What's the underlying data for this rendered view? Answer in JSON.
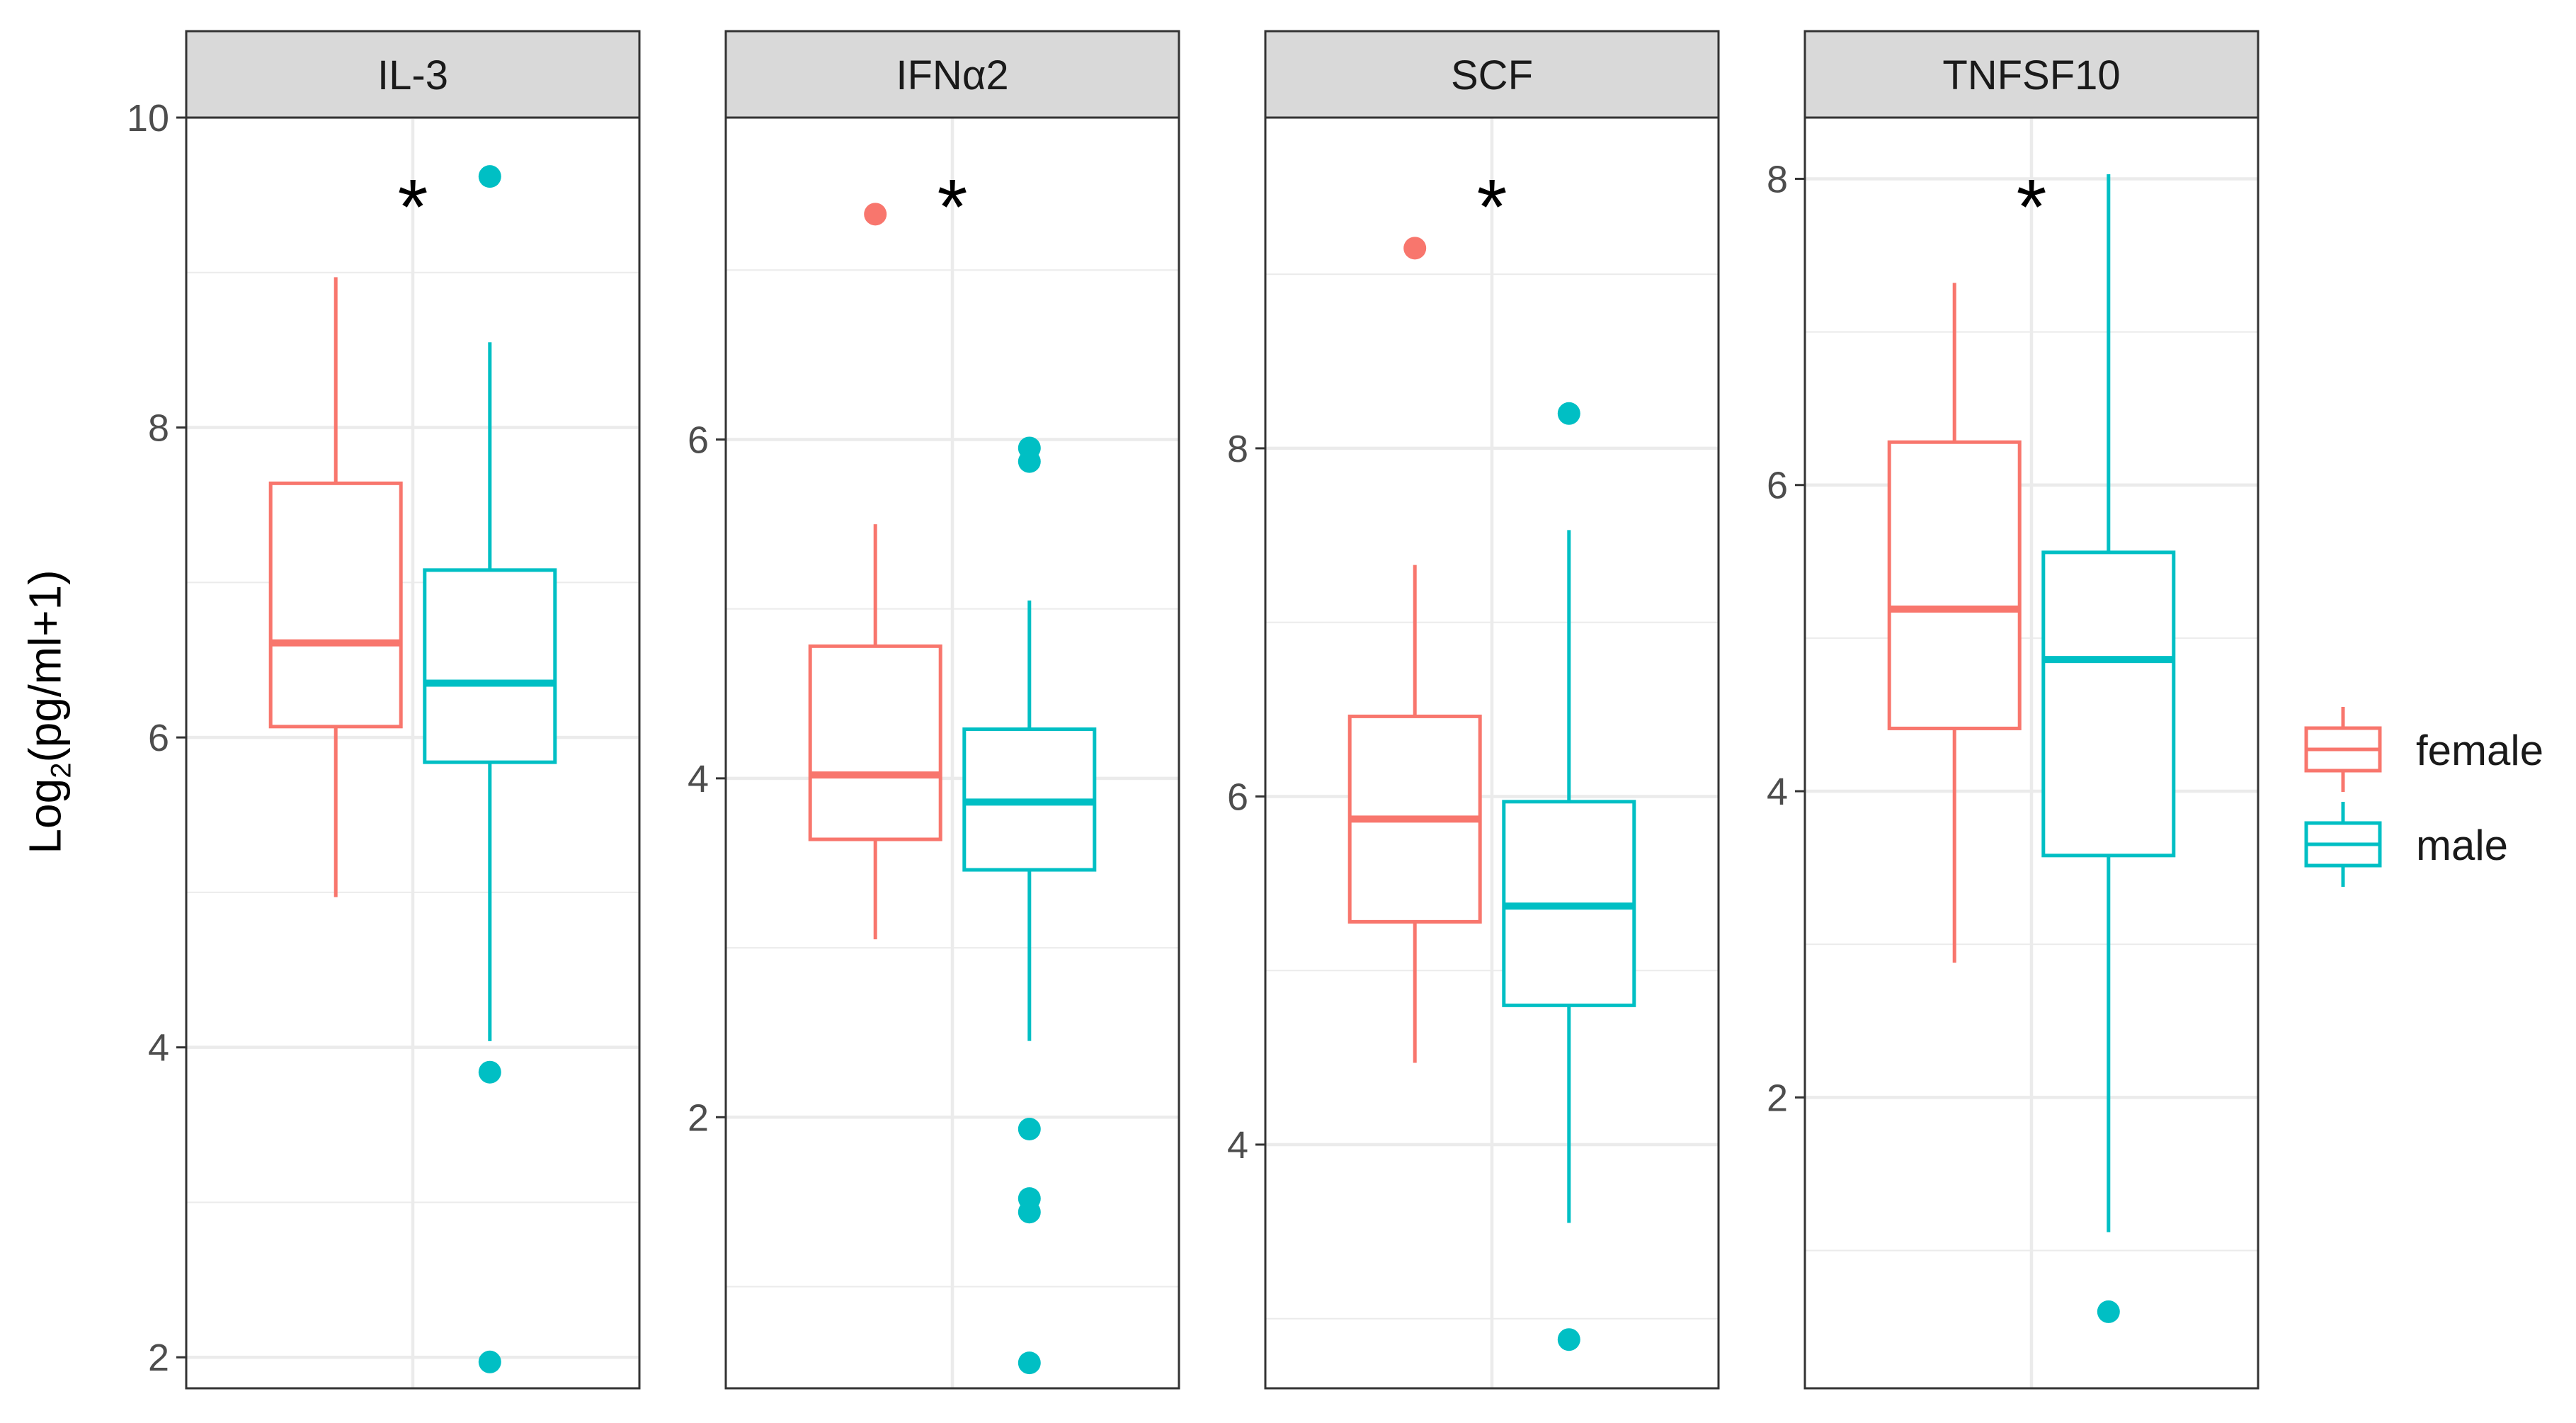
{
  "chart_data": {
    "type": "boxplot",
    "ylabel": {
      "prefix": "Log",
      "subscript": "2",
      "suffix": "(pg/ml+1)"
    },
    "groups": [
      "female",
      "male"
    ],
    "colors": {
      "female": "#F8766D",
      "male": "#00BFC4",
      "strip_bg": "#D9D9D9",
      "grid": "#EBEBEB"
    },
    "legend": {
      "position": "right",
      "entries": [
        "female",
        "male"
      ]
    },
    "panels": [
      {
        "title": "IL-3",
        "ylim": [
          1.8,
          10
        ],
        "ticks": [
          2,
          4,
          6,
          8,
          10
        ],
        "tick_labels": [
          "2",
          "4",
          "6",
          "8",
          "10"
        ],
        "significance": "*",
        "boxes": [
          {
            "group": "female",
            "min": 4.97,
            "q1": 6.07,
            "median": 6.61,
            "q3": 7.64,
            "max": 8.97,
            "outliers": []
          },
          {
            "group": "male",
            "min": 4.04,
            "q1": 5.84,
            "median": 6.35,
            "q3": 7.08,
            "max": 8.55,
            "outliers": [
              9.62,
              3.84,
              1.97
            ]
          }
        ]
      },
      {
        "title": "IFNα2",
        "ylim": [
          0.4,
          7.9
        ],
        "ticks": [
          2,
          4,
          6
        ],
        "tick_labels": [
          "2",
          "4",
          "6"
        ],
        "significance": "*",
        "boxes": [
          {
            "group": "female",
            "min": 3.05,
            "q1": 3.64,
            "median": 4.02,
            "q3": 4.78,
            "max": 5.5,
            "outliers": [
              7.33
            ]
          },
          {
            "group": "male",
            "min": 2.45,
            "q1": 3.46,
            "median": 3.86,
            "q3": 4.29,
            "max": 5.05,
            "outliers": [
              5.95,
              5.87,
              1.93,
              1.52,
              1.44,
              0.55
            ]
          }
        ]
      },
      {
        "title": "SCF",
        "ylim": [
          2.6,
          9.9
        ],
        "ticks": [
          4,
          6,
          8
        ],
        "tick_labels": [
          "4",
          "6",
          "8"
        ],
        "significance": "*",
        "boxes": [
          {
            "group": "female",
            "min": 4.47,
            "q1": 5.28,
            "median": 5.87,
            "q3": 6.46,
            "max": 7.33,
            "outliers": [
              9.15
            ]
          },
          {
            "group": "male",
            "min": 3.55,
            "q1": 4.8,
            "median": 5.37,
            "q3": 5.97,
            "max": 7.53,
            "outliers": [
              8.2,
              2.88
            ]
          }
        ]
      },
      {
        "title": "TNFSF10",
        "ylim": [
          0.1,
          8.4
        ],
        "ticks": [
          2,
          4,
          6,
          8
        ],
        "tick_labels": [
          "2",
          "4",
          "6",
          "8"
        ],
        "significance": "*",
        "boxes": [
          {
            "group": "female",
            "min": 2.88,
            "q1": 4.41,
            "median": 5.19,
            "q3": 6.28,
            "max": 7.32,
            "outliers": []
          },
          {
            "group": "male",
            "min": 1.12,
            "q1": 3.58,
            "median": 4.86,
            "q3": 5.56,
            "max": 8.03,
            "outliers": [
              0.6
            ]
          }
        ]
      }
    ]
  }
}
